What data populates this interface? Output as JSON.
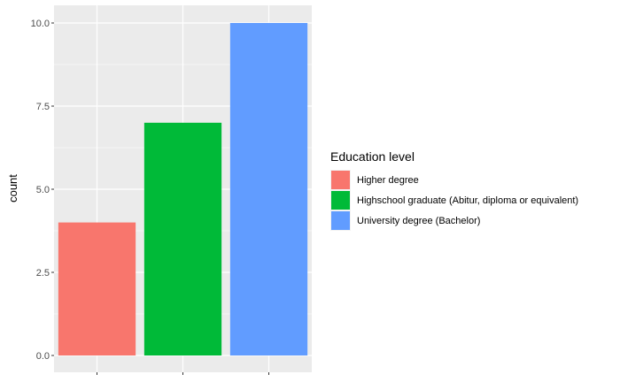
{
  "chart_data": {
    "type": "bar",
    "categories": [
      "Higher degree",
      "Highschool graduate (Abitur, diploma or equivalent)",
      "University degree (Bachelor)"
    ],
    "values": [
      4,
      7,
      10
    ],
    "colors": [
      "#F8766D",
      "#00BA38",
      "#619CFF"
    ],
    "title": "",
    "xlabel": "",
    "ylabel": "count",
    "ylim": [
      0,
      10.5
    ],
    "yticks": [
      0,
      2.5,
      5,
      7.5,
      10
    ],
    "ytick_labels": [
      "0.0",
      "2.5",
      "5.0",
      "7.5",
      "10.0"
    ],
    "grid": true,
    "legend": {
      "title": "Education level",
      "position": "right",
      "entries": [
        "Higher degree",
        "Highschool graduate (Abitur, diploma or equivalent)",
        "University degree (Bachelor)"
      ]
    }
  }
}
